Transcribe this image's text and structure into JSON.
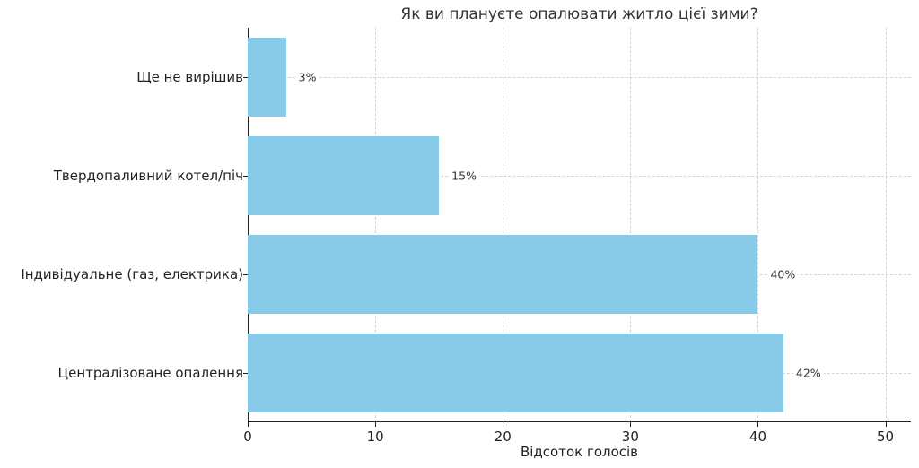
{
  "chart_data": {
    "type": "bar",
    "orientation": "horizontal",
    "title": "Як ви плануєте опалювати житло цієї зими?",
    "xlabel": "Відсоток голосів",
    "ylabel": "",
    "categories": [
      "Ще не вирішив",
      "Твердопаливний котел/піч",
      "Індивідуальне (газ, електрика)",
      "Централізоване опалення"
    ],
    "values": [
      3,
      15,
      40,
      42
    ],
    "value_labels": [
      "3%",
      "15%",
      "40%",
      "42%"
    ],
    "xlim": [
      0,
      52
    ],
    "xticks": [
      "0",
      "10",
      "20",
      "30",
      "40",
      "50"
    ],
    "grid": true,
    "legend": null,
    "bar_color": "#87cbe8"
  }
}
